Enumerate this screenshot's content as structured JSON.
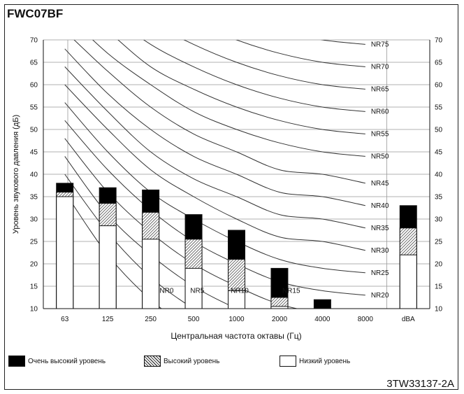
{
  "model": "FWC07BF",
  "doc_code": "3TW33137-2A",
  "legend": {
    "very_high": "Очень высокий уровень",
    "high": "Высокий уровень",
    "low": "Низкий уровень"
  },
  "colors": {
    "very_high": "#000000",
    "high": "#888888",
    "low": "#ffffff",
    "grid": "#999999",
    "curve": "#333333"
  },
  "chart_data": {
    "type": "bar",
    "title": "FWC07BF",
    "xlabel": "Центральная частота октавы (Гц)",
    "ylabel": "Уровень звукового давления (дБ)",
    "ylim": [
      10,
      70
    ],
    "y_ticks": [
      10,
      15,
      20,
      25,
      30,
      35,
      40,
      45,
      50,
      55,
      60,
      65,
      70
    ],
    "categories": [
      "63",
      "125",
      "250",
      "500",
      "1000",
      "2000",
      "4000",
      "8000",
      "dBA"
    ],
    "stacking": "overlay",
    "series": [
      {
        "name": "Очень высокий уровень",
        "values": [
          38,
          37,
          36.5,
          31,
          27.5,
          19,
          12,
          null,
          33
        ]
      },
      {
        "name": "Высокий уровень",
        "values": [
          36,
          33.5,
          31.5,
          25.5,
          21,
          12.5,
          null,
          null,
          28
        ]
      },
      {
        "name": "Низкий уровень",
        "values": [
          35,
          28.5,
          25.5,
          19,
          14,
          10.5,
          null,
          null,
          22
        ]
      }
    ],
    "nr_curves": [
      {
        "label": "NR0",
        "values": [
          36,
          22,
          12,
          5,
          0,
          -4,
          -6,
          -8
        ]
      },
      {
        "label": "NR5",
        "values": [
          40,
          27,
          17,
          10,
          5,
          1,
          -1,
          -3
        ]
      },
      {
        "label": "NR10",
        "values": [
          44,
          31,
          22,
          15,
          10,
          6,
          4,
          2
        ]
      },
      {
        "label": "NR15",
        "values": [
          48,
          36,
          27,
          20,
          15,
          11,
          9,
          8
        ]
      },
      {
        "label": "NR20",
        "values": [
          52,
          41,
          32,
          25,
          20,
          16,
          14,
          13
        ]
      },
      {
        "label": "NR25",
        "values": [
          56,
          45,
          36,
          30,
          25,
          21,
          19,
          18
        ]
      },
      {
        "label": "NR30",
        "values": [
          60,
          50,
          41,
          35,
          30,
          26,
          25,
          23
        ]
      },
      {
        "label": "NR35",
        "values": [
          64,
          54,
          45,
          39,
          35,
          31,
          30,
          28
        ]
      },
      {
        "label": "NR40",
        "values": [
          68,
          58,
          50,
          44,
          40,
          36,
          35,
          33
        ]
      },
      {
        "label": "NR45",
        "values": [
          72,
          63,
          55,
          49,
          45,
          41,
          40,
          38
        ]
      },
      {
        "label": "NR50",
        "values": [
          76,
          67,
          60,
          54,
          50,
          47,
          45,
          44
        ]
      },
      {
        "label": "NR55",
        "values": [
          80,
          72,
          64,
          59,
          55,
          52,
          50,
          49
        ]
      },
      {
        "label": "NR60",
        "values": [
          84,
          76,
          69,
          64,
          60,
          57,
          55,
          54
        ]
      },
      {
        "label": "NR65",
        "values": [
          88,
          81,
          74,
          69,
          65,
          62,
          60,
          59
        ]
      },
      {
        "label": "NR70",
        "values": [
          92,
          85,
          78,
          74,
          70,
          67,
          65,
          64
        ]
      },
      {
        "label": "NR75",
        "values": [
          96,
          90,
          83,
          79,
          75,
          72,
          70,
          69
        ]
      }
    ]
  }
}
